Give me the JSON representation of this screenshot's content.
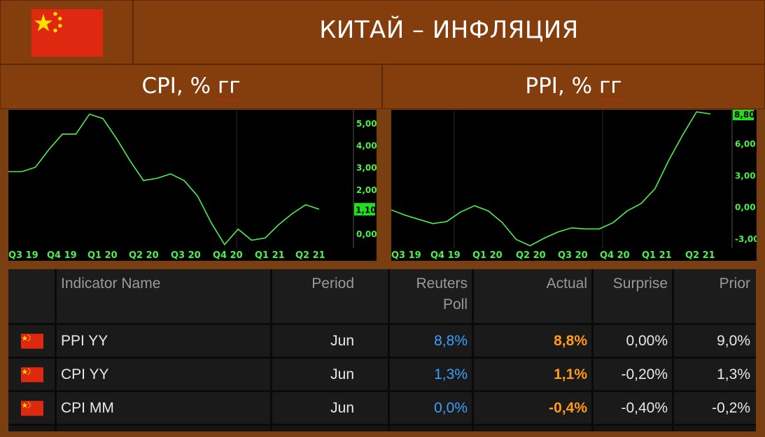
{
  "header": {
    "title": "КИТАЙ – ИНФЛЯЦИЯ"
  },
  "colors": {
    "line": "#4cf04c",
    "label_bg": "#22dd22",
    "poll": "#3aa0ff",
    "actual": "#ff9a1a",
    "flag_red": "#de2910",
    "flag_star": "#ffde00"
  },
  "icons": {
    "flag": "china-flag-icon"
  },
  "chart_data": [
    {
      "type": "line",
      "title": "CPI, % гг",
      "x_ticks": [
        "Q3 19",
        "Q4 19",
        "Q1 20",
        "Q2 20",
        "Q3 20",
        "Q4 20",
        "Q1 21",
        "Q2 21"
      ],
      "y_ticks": [
        "5,00",
        "4,00",
        "3,00",
        "2,00",
        "0,00"
      ],
      "ylim": [
        -0.6,
        5.6
      ],
      "last_value_label": "1,10",
      "series": [
        {
          "x": [
            "2019-07",
            "2019-08",
            "2019-09",
            "2019-10",
            "2019-11",
            "2019-12",
            "2020-01",
            "2020-02",
            "2020-03",
            "2020-04",
            "2020-05",
            "2020-06",
            "2020-07",
            "2020-08",
            "2020-09",
            "2020-10",
            "2020-11",
            "2020-12",
            "2021-01",
            "2021-02",
            "2021-03",
            "2021-04",
            "2021-05",
            "2021-06"
          ],
          "y": [
            2.8,
            2.8,
            3.0,
            3.8,
            4.5,
            4.5,
            5.4,
            5.2,
            4.3,
            3.3,
            2.4,
            2.5,
            2.7,
            2.4,
            1.7,
            0.5,
            -0.5,
            0.2,
            -0.3,
            -0.2,
            0.4,
            0.9,
            1.3,
            1.1
          ]
        }
      ],
      "grid": false
    },
    {
      "type": "line",
      "title": "PPI, % гг",
      "x_ticks": [
        "Q3 19",
        "Q4 19",
        "Q1 20",
        "Q2 20",
        "Q3 20",
        "Q4 20",
        "Q1 21",
        "Q2 21"
      ],
      "y_ticks": [
        "6,00",
        "3,00",
        "0,00",
        "-3,00"
      ],
      "ylim": [
        -3.8,
        9.2
      ],
      "last_value_label": "8,80",
      "series": [
        {
          "x": [
            "2019-07",
            "2019-08",
            "2019-09",
            "2019-10",
            "2019-11",
            "2019-12",
            "2020-01",
            "2020-02",
            "2020-03",
            "2020-04",
            "2020-05",
            "2020-06",
            "2020-07",
            "2020-08",
            "2020-09",
            "2020-10",
            "2020-11",
            "2020-12",
            "2021-01",
            "2021-02",
            "2021-03",
            "2021-04",
            "2021-05",
            "2021-06"
          ],
          "y": [
            -0.3,
            -0.8,
            -1.2,
            -1.6,
            -1.4,
            -0.5,
            0.1,
            -0.4,
            -1.5,
            -3.1,
            -3.7,
            -3.0,
            -2.4,
            -2.0,
            -2.1,
            -2.1,
            -1.5,
            -0.4,
            0.3,
            1.7,
            4.4,
            6.8,
            9.0,
            8.8
          ]
        }
      ],
      "grid": false
    }
  ],
  "table": {
    "headers": [
      "Indicator Name",
      "Period",
      "Reuters",
      "Poll",
      "Actual",
      "Surprise",
      "Prior"
    ],
    "rows": [
      {
        "name": "PPI YY",
        "period": "Jun",
        "poll": "8,8%",
        "actual": "8,8%",
        "surprise": "0,00%",
        "prior": "9,0%"
      },
      {
        "name": "CPI YY",
        "period": "Jun",
        "poll": "1,3%",
        "actual": "1,1%",
        "surprise": "-0,20%",
        "prior": "1,3%"
      },
      {
        "name": "CPI MM",
        "period": "Jun",
        "poll": "0,0%",
        "actual": "-0,4%",
        "surprise": "-0,40%",
        "prior": "-0,2%"
      }
    ]
  }
}
